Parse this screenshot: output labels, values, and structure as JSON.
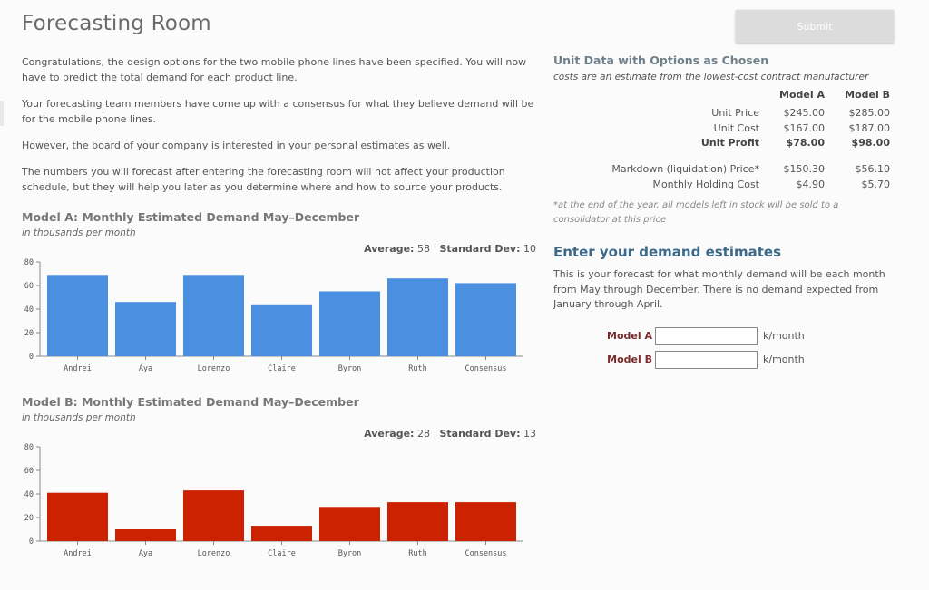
{
  "header": {
    "title": "Forecasting Room",
    "submit_label": "Submit"
  },
  "intro": {
    "p1": "Congratulations, the design options for the two mobile phone lines have been specified. You will now have to predict the total demand for each product line.",
    "p2": "Your forecasting team members have come up with a consensus for what they believe demand will be for the mobile phone lines.",
    "p3": "However, the board of your company is interested in your personal estimates as well.",
    "p4": "The numbers you will forecast after entering the forecasting room will not affect your production schedule, but they will help you later as you determine where and how to source your products."
  },
  "chart_a": {
    "title": "Model A: Monthly Estimated Demand May–December",
    "subtitle": "in thousands per month",
    "average_label": "Average:",
    "average_value": "58",
    "std_label": "Standard Dev:",
    "std_value": "10"
  },
  "chart_b": {
    "title": "Model B: Monthly Estimated Demand May–December",
    "subtitle": "in thousands per month",
    "average_label": "Average:",
    "average_value": "28",
    "std_label": "Standard Dev:",
    "std_value": "13"
  },
  "chart_data": [
    {
      "type": "bar",
      "title": "Model A: Monthly Estimated Demand May–December",
      "categories": [
        "Andrei",
        "Aya",
        "Lorenzo",
        "Claire",
        "Byron",
        "Ruth",
        "Consensus"
      ],
      "values": [
        69,
        46,
        69,
        44,
        55,
        66,
        62
      ],
      "ylim": [
        0,
        80
      ],
      "yticks": [
        "0",
        "20",
        "40",
        "60",
        "80"
      ],
      "color": "#4a8fe0",
      "grid": false
    },
    {
      "type": "bar",
      "title": "Model B: Monthly Estimated Demand May–December",
      "categories": [
        "Andrei",
        "Aya",
        "Lorenzo",
        "Claire",
        "Byron",
        "Ruth",
        "Consensus"
      ],
      "values": [
        41,
        10,
        43,
        13,
        29,
        33,
        33
      ],
      "ylim": [
        0,
        80
      ],
      "yticks": [
        "0",
        "20",
        "40",
        "60",
        "80"
      ],
      "color": "#cc2200",
      "grid": false
    }
  ],
  "unit_data": {
    "heading": "Unit Data with Options as Chosen",
    "subheading": "costs are an estimate from the lowest-cost contract manufacturer",
    "col_a": "Model A",
    "col_b": "Model B",
    "rows": [
      {
        "label": "Unit Price",
        "a": "$245.00",
        "b": "$285.00"
      },
      {
        "label": "Unit Cost",
        "a": "$167.00",
        "b": "$187.00"
      },
      {
        "label": "Unit Profit",
        "a": "$78.00",
        "b": "$98.00"
      },
      {
        "label": "Markdown (liquidation) Price*",
        "a": "$150.30",
        "b": "$56.10"
      },
      {
        "label": "Monthly Holding Cost",
        "a": "$4.90",
        "b": "$5.70"
      }
    ],
    "footnote": "*at the end of the year, all models left in stock will be sold to a consolidator at this price"
  },
  "estimates": {
    "heading": "Enter your demand estimates",
    "description": "This is your forecast for what monthly demand will be each month from May through December. There is no demand expected from January through April.",
    "model_a_label": "Model A",
    "model_b_label": "Model B",
    "model_a_value": "",
    "model_b_value": "",
    "unit": "k/month"
  }
}
